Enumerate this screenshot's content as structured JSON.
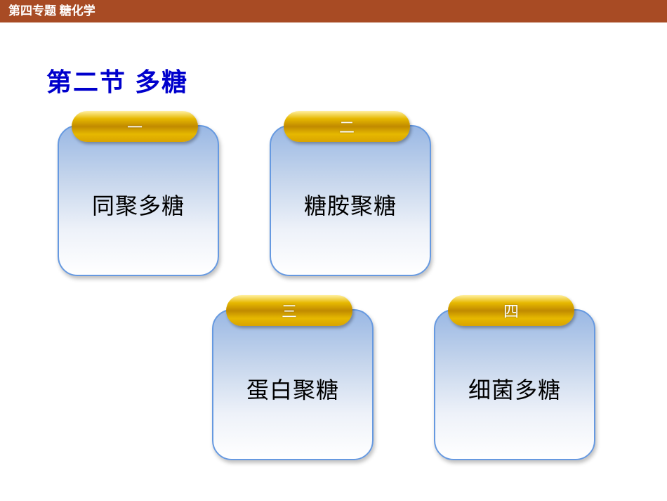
{
  "header": {
    "title": "第四专题 糖化学"
  },
  "section": {
    "title": "第二节  多糖"
  },
  "cards": {
    "c1": {
      "num": "一",
      "label": "同聚多糖"
    },
    "c2": {
      "num": "二",
      "label": "糖胺聚糖"
    },
    "c3": {
      "num": "三",
      "label": "蛋白聚糖"
    },
    "c4": {
      "num": "四",
      "label": "细菌多糖"
    }
  },
  "style": {
    "header_bg": "#a84b24",
    "title_color": "#0000cc",
    "card_border": "#6699e0",
    "pill_gold": "#e6b800",
    "text_color": "#000000",
    "title_fontsize": 36,
    "card_fontsize": 32,
    "pill_fontsize": 22
  }
}
